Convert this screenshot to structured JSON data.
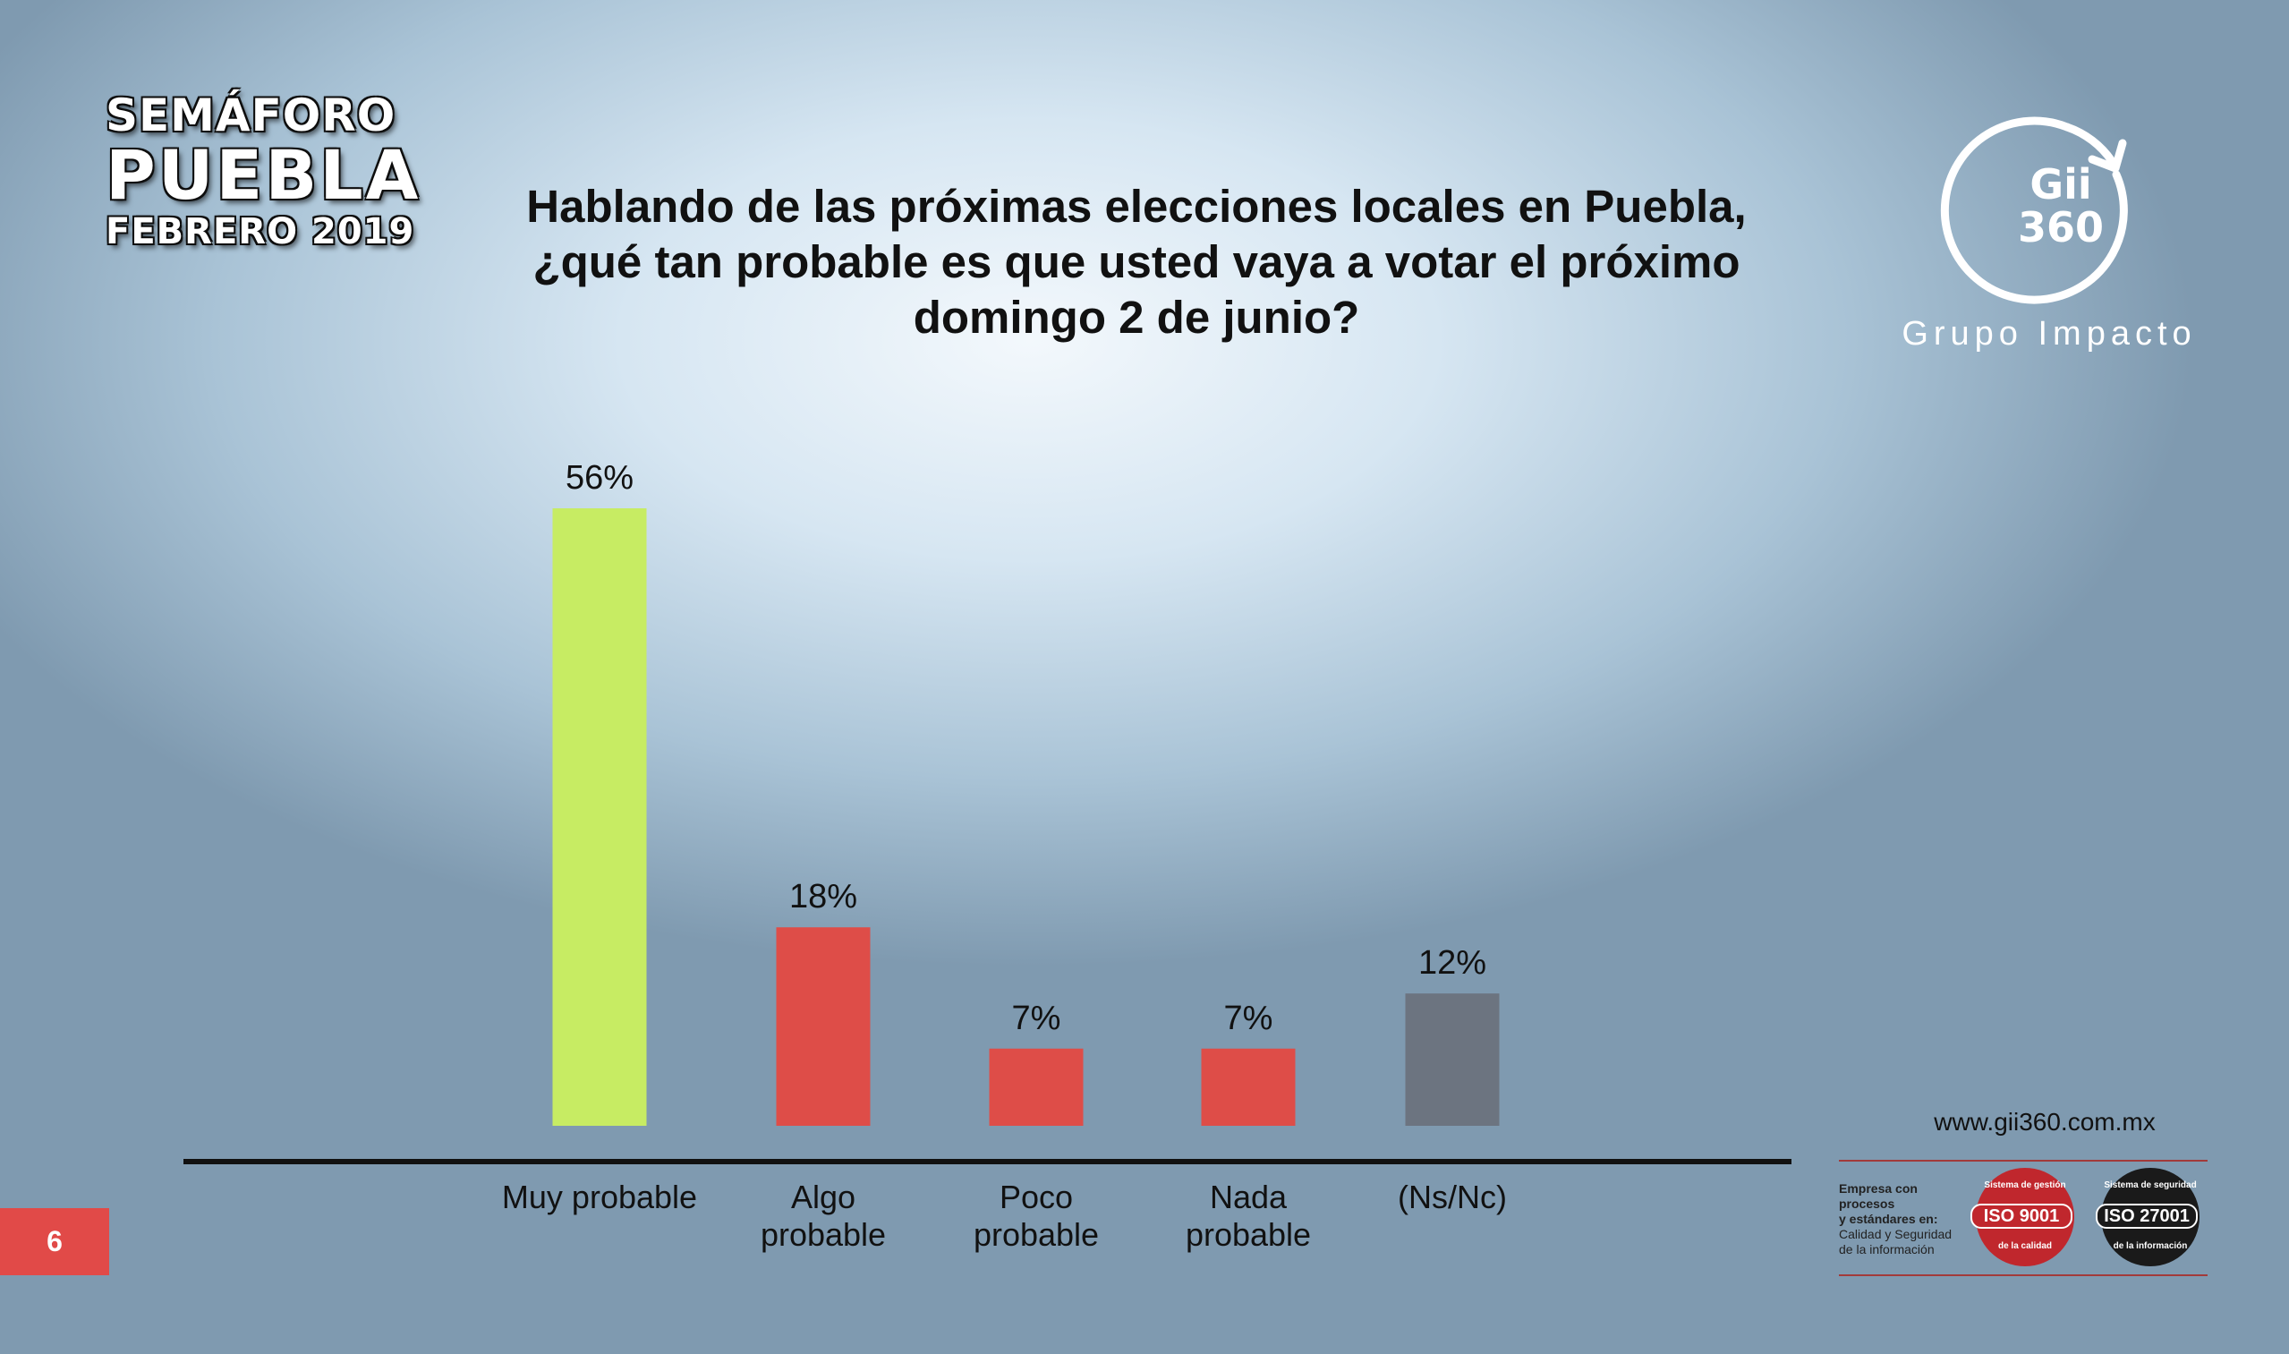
{
  "brand": {
    "line1": "SEMÁFORO",
    "line2": "PUEBLA",
    "line3": "FEBRERO 2019"
  },
  "question": {
    "line1": "Hablando de las próximas elecciones locales en Puebla,",
    "line2": "¿qué tan probable es que usted vaya a votar el próximo",
    "line3": "domingo 2 de junio?"
  },
  "logo": {
    "mark_line1": "Gii",
    "mark_line2": "360",
    "name": "Grupo Impacto"
  },
  "page_number": "6",
  "footer": {
    "website": "www.gii360.com.mx",
    "cert_bold_1": "Empresa con procesos",
    "cert_bold_2": "y estándares en:",
    "cert_text_1": "Calidad y Seguridad",
    "cert_text_2": "de la información",
    "iso1": "ISO 9001",
    "iso1_top": "Sistema de gestión",
    "iso1_bottom": "de la calidad",
    "iso2": "ISO 27001",
    "iso2_top": "Sistema de seguridad",
    "iso2_bottom": "de la información"
  },
  "colors": {
    "green": "#c7ec63",
    "red": "#de4d48",
    "gray": "#6c7480",
    "badge_red": "#c0272d",
    "badge_black": "#1a1a1a"
  },
  "chart_data": {
    "type": "bar",
    "title": "Hablando de las próximas elecciones locales en Puebla, ¿qué tan probable es que usted vaya a votar el próximo domingo 2 de junio?",
    "categories": [
      [
        "Muy probable"
      ],
      [
        "Algo",
        "probable"
      ],
      [
        "Poco",
        "probable"
      ],
      [
        "Nada",
        "probable"
      ],
      [
        "(Ns/Nc)"
      ]
    ],
    "values": [
      56,
      18,
      7,
      7,
      12
    ],
    "data_labels": [
      "56%",
      "18%",
      "7%",
      "7%",
      "12%"
    ],
    "bar_colors": [
      "#c7ec63",
      "#de4d48",
      "#de4d48",
      "#de4d48",
      "#6c7480"
    ],
    "ylim": [
      0,
      56
    ],
    "xlabel": "",
    "ylabel": "",
    "grid": false,
    "legend": "none"
  }
}
